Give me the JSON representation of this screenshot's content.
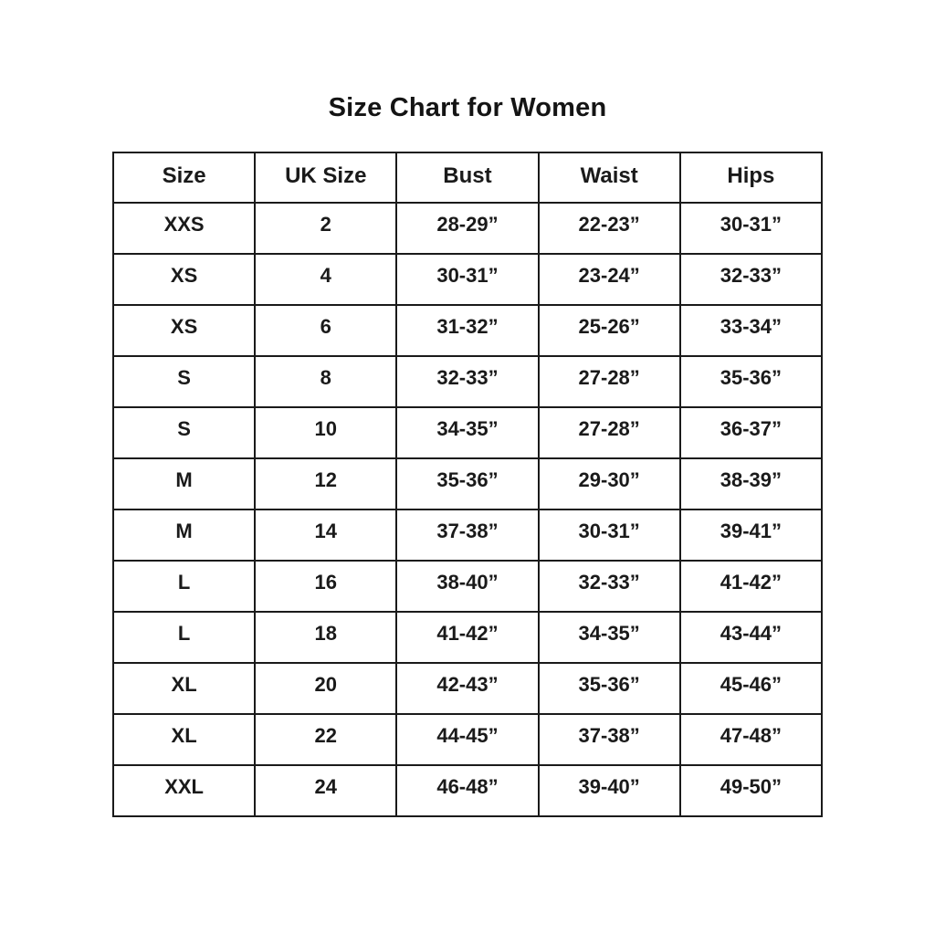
{
  "page": {
    "title": "Size Chart for Women"
  },
  "chart_data": {
    "type": "table",
    "title": "Size Chart for Women",
    "columns": [
      "Size",
      "UK Size",
      "Bust",
      "Waist",
      "Hips"
    ],
    "rows": [
      [
        "XXS",
        "2",
        "28-29”",
        "22-23”",
        "30-31”"
      ],
      [
        "XS",
        "4",
        "30-31”",
        "23-24”",
        "32-33”"
      ],
      [
        "XS",
        "6",
        "31-32”",
        "25-26”",
        "33-34”"
      ],
      [
        "S",
        "8",
        "32-33”",
        "27-28”",
        "35-36”"
      ],
      [
        "S",
        "10",
        "34-35”",
        "27-28”",
        "36-37”"
      ],
      [
        "M",
        "12",
        "35-36”",
        "29-30”",
        "38-39”"
      ],
      [
        "M",
        "14",
        "37-38”",
        "30-31”",
        "39-41”"
      ],
      [
        "L",
        "16",
        "38-40”",
        "32-33”",
        "41-42”"
      ],
      [
        "L",
        "18",
        "41-42”",
        "34-35”",
        "43-44”"
      ],
      [
        "XL",
        "20",
        "42-43”",
        "35-36”",
        "45-46”"
      ],
      [
        "XL",
        "22",
        "44-45”",
        "37-38”",
        "47-48”"
      ],
      [
        "XXL",
        "24",
        "46-48”",
        "39-40”",
        "49-50”"
      ]
    ],
    "layout": {
      "background": "#ffffff",
      "text_color": "#1a1a1a",
      "border_color": "#1a1a1a",
      "grid": "on",
      "column_count": 5,
      "row_count": 12
    }
  }
}
